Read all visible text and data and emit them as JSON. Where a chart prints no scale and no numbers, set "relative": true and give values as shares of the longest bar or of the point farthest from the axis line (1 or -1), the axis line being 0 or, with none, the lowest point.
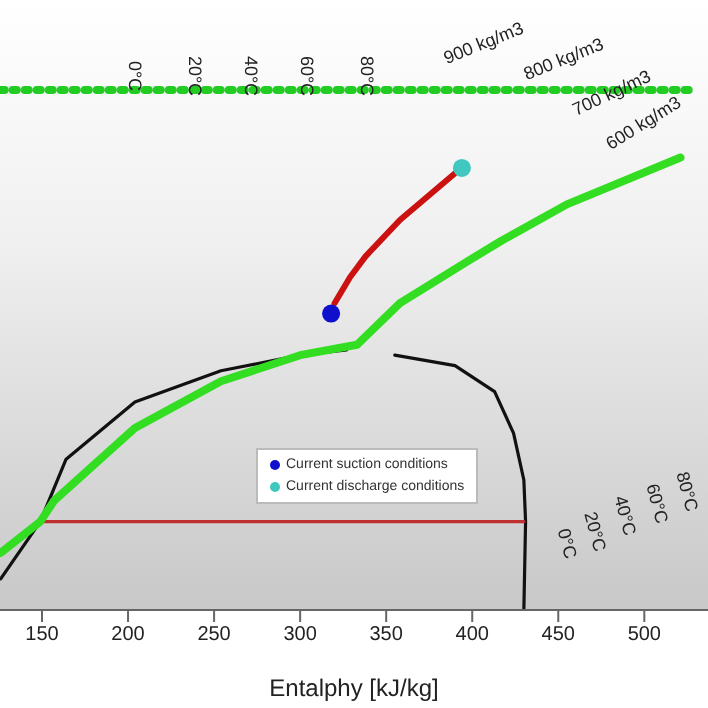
{
  "chart_data": {
    "type": "line",
    "relative": true,
    "xlabel": "Entalphy [kJ/kg]",
    "xlim": [
      125.6,
      537
    ],
    "xticks": [
      150,
      200,
      250,
      300,
      350,
      400,
      450,
      500
    ],
    "legend": "bottom",
    "annotations": [
      "0°C",
      "20°C",
      "40°C",
      "60°C",
      "80°C",
      "900 kg/m3",
      "800 kg/m3",
      "700 kg/m3",
      "600 kg/m3",
      "0°C",
      "20°C",
      "40°C",
      "60°C",
      "80°C"
    ],
    "series": [
      {
        "color": "#111111",
        "x": [
          126,
          149,
          164,
          204,
          254,
          300,
          327,
          340,
          355,
          390,
          413,
          424,
          430,
          431,
          430
        ],
        "values": [
          0.06,
          0.17,
          0.29,
          0.4,
          0.46,
          0.49,
          0.5,
          null,
          0.49,
          0.47,
          0.42,
          0.34,
          0.25,
          0.17,
          0
        ]
      },
      {
        "color": "#c03030",
        "x": [
          149,
          430
        ],
        "values": [
          0.17,
          0.17
        ]
      },
      {
        "color": "#22cc22",
        "line_style": "dotted",
        "x": [
          126,
          527
        ],
        "values": [
          1,
          1
        ]
      },
      {
        "color": "#33dd22",
        "x": [
          126,
          149,
          157,
          204,
          254,
          300,
          333,
          358,
          397,
          417,
          455,
          521
        ],
        "values": [
          0.11,
          0.17,
          0.21,
          0.35,
          0.44,
          0.49,
          0.51,
          0.59,
          0.67,
          0.71,
          0.78,
          0.87
        ]
      },
      {
        "color": "#cc1111",
        "x": [
          320,
          329,
          338,
          358,
          390
        ],
        "values": [
          0.59,
          0.64,
          0.68,
          0.75,
          0.84
        ]
      },
      {
        "type": "scatter",
        "marker": "circle",
        "name": "Current suction conditions",
        "color": "#1010cc",
        "x": [
          318
        ],
        "values": [
          0.57
        ]
      },
      {
        "type": "scatter",
        "marker": "circle",
        "name": "Current discharge conditions",
        "color": "#40c8c0",
        "x": [
          394
        ],
        "values": [
          0.85
        ]
      }
    ]
  }
}
